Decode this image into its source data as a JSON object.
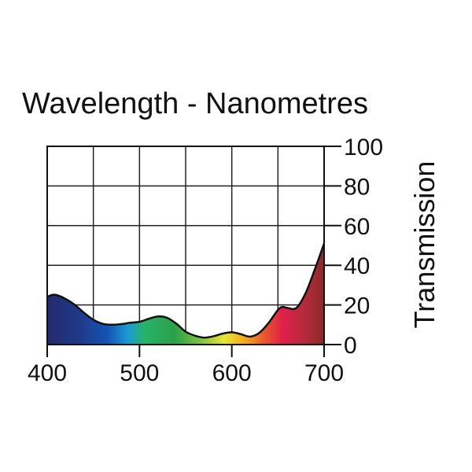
{
  "chart_data": {
    "type": "area",
    "title": "Wavelength - Nanometres",
    "xlabel": "",
    "ylabel": "Transmission",
    "xlim": [
      400,
      700
    ],
    "ylim": [
      0,
      100
    ],
    "grid": true,
    "x_ticks": [
      400,
      500,
      600,
      700
    ],
    "x_tick_labels": [
      "400",
      "500",
      "600",
      "700"
    ],
    "y_ticks": [
      0,
      20,
      40,
      60,
      80,
      100
    ],
    "y_tick_labels": [
      "0",
      "20",
      "40",
      "60",
      "80",
      "100"
    ],
    "y_axis_side": "right",
    "x": [
      400,
      405,
      410,
      420,
      430,
      440,
      450,
      460,
      470,
      480,
      490,
      500,
      510,
      520,
      530,
      540,
      550,
      560,
      570,
      580,
      590,
      600,
      610,
      620,
      630,
      640,
      650,
      655,
      660,
      670,
      680,
      690,
      700
    ],
    "values": [
      24,
      25,
      25,
      23,
      20,
      16,
      12.5,
      10.5,
      10,
      10.3,
      11,
      11.5,
      13,
      14.2,
      13.5,
      10.5,
      6.5,
      4.5,
      3.5,
      4.2,
      5.5,
      6.2,
      5.2,
      4,
      6,
      11,
      17.5,
      19,
      18.5,
      18.5,
      26,
      38,
      51
    ],
    "colors": {
      "line": "#111111",
      "grid": "#222222",
      "spectrum": [
        "#242a6e",
        "#1f3a8a",
        "#1455b5",
        "#1c9ad6",
        "#27b36a",
        "#2ba14a",
        "#7cc042",
        "#e7e634",
        "#f6a11e",
        "#e85a2a",
        "#e11f4a",
        "#b52b3c",
        "#8a2a2a"
      ]
    }
  }
}
